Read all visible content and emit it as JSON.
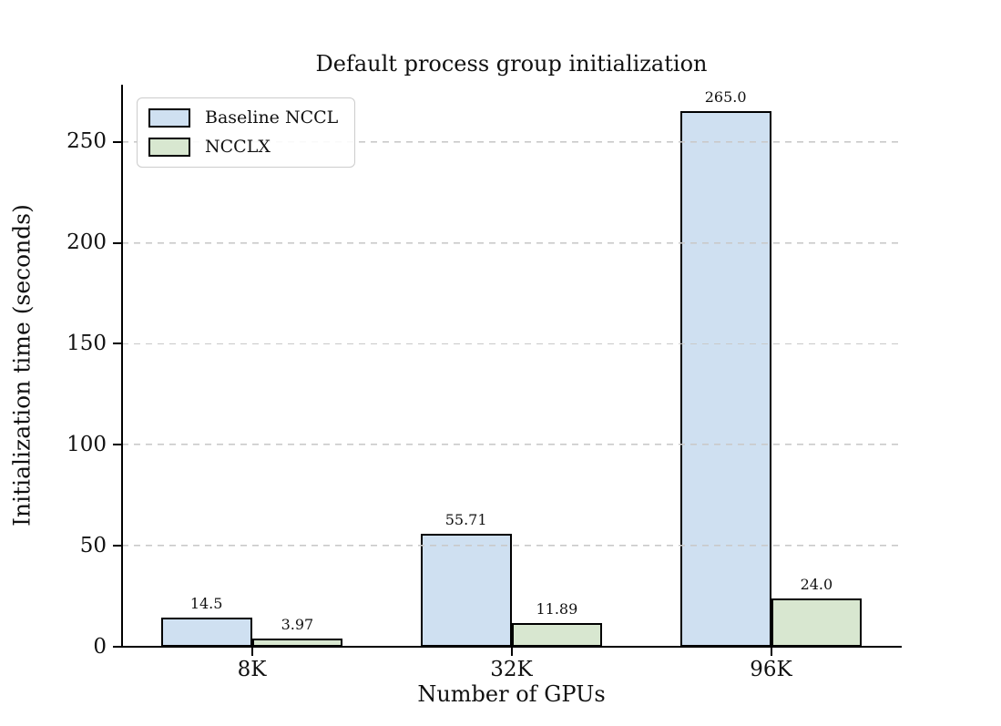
{
  "chart_data": {
    "type": "bar",
    "title": "Default process group initialization",
    "xlabel": "Number of GPUs",
    "ylabel": "Initialization time (seconds)",
    "categories": [
      "8K",
      "32K",
      "96K"
    ],
    "series": [
      {
        "name": "Baseline NCCL",
        "color": "#cfe0f1",
        "values": [
          14.5,
          55.71,
          265.0
        ],
        "value_labels": [
          "14.5",
          "55.71",
          "265.0"
        ]
      },
      {
        "name": "NCCLX",
        "color": "#d8e7d0",
        "values": [
          3.97,
          11.89,
          24.0
        ],
        "value_labels": [
          "3.97",
          "11.89",
          "24.0"
        ]
      }
    ],
    "yticks": [
      0,
      50,
      100,
      150,
      200,
      250
    ],
    "ylim": [
      0,
      278.25
    ],
    "bar_width_fraction": 0.35,
    "grid": {
      "axis": "y",
      "style": "dashed",
      "color": "#c9c9c9"
    },
    "legend": {
      "position": "upper-left",
      "entries": [
        "Baseline NCCL",
        "NCCLX"
      ]
    },
    "edge_color": "#000000",
    "background_color": "#ffffff"
  }
}
